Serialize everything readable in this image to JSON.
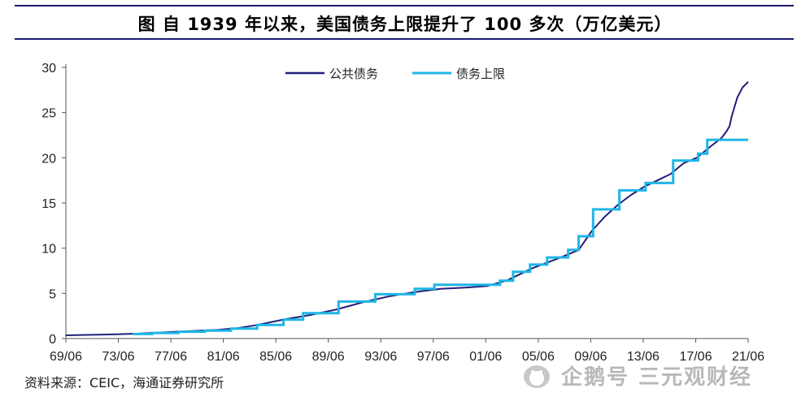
{
  "title": "图  自 1939 年以来，美国债务上限提升了 100 多次（万亿美元）",
  "source": "资料来源：CEIC，海通证券研究所",
  "watermark": "企鹅号 三元观财经",
  "colors": {
    "debt": "#1f1f7a",
    "limit": "#1fb6e6",
    "rule": "#1a1a6e",
    "axis": "#555555"
  },
  "chart_data": {
    "type": "line",
    "title": "自 1939 年以来，美国债务上限提升了 100 多次（万亿美元）",
    "xlabel": "",
    "ylabel": "",
    "xlim": [
      1969.42,
      2021.42
    ],
    "ylim": [
      0,
      30
    ],
    "yticks": [
      0,
      5,
      10,
      15,
      20,
      25,
      30
    ],
    "xticks": [
      {
        "x": 1969.42,
        "label": "69/06"
      },
      {
        "x": 1973.42,
        "label": "73/06"
      },
      {
        "x": 1977.42,
        "label": "77/06"
      },
      {
        "x": 1981.42,
        "label": "81/06"
      },
      {
        "x": 1985.42,
        "label": "85/06"
      },
      {
        "x": 1989.42,
        "label": "89/06"
      },
      {
        "x": 1993.42,
        "label": "93/06"
      },
      {
        "x": 1997.42,
        "label": "97/06"
      },
      {
        "x": 2001.42,
        "label": "01/06"
      },
      {
        "x": 2005.42,
        "label": "05/06"
      },
      {
        "x": 2009.42,
        "label": "09/06"
      },
      {
        "x": 2013.42,
        "label": "13/06"
      },
      {
        "x": 2017.42,
        "label": "17/06"
      },
      {
        "x": 2021.42,
        "label": "21/06"
      }
    ],
    "legend_position": "top-center",
    "grid": false,
    "series": [
      {
        "name": "公共债务",
        "kind": "line",
        "points": [
          [
            1969.42,
            0.36
          ],
          [
            1971.0,
            0.4
          ],
          [
            1973.0,
            0.46
          ],
          [
            1975.0,
            0.55
          ],
          [
            1977.0,
            0.7
          ],
          [
            1979.0,
            0.83
          ],
          [
            1981.0,
            0.97
          ],
          [
            1982.5,
            1.15
          ],
          [
            1984.0,
            1.5
          ],
          [
            1986.0,
            2.1
          ],
          [
            1988.0,
            2.6
          ],
          [
            1990.0,
            3.2
          ],
          [
            1992.0,
            4.0
          ],
          [
            1994.0,
            4.65
          ],
          [
            1996.0,
            5.15
          ],
          [
            1998.0,
            5.5
          ],
          [
            2000.0,
            5.65
          ],
          [
            2001.5,
            5.8
          ],
          [
            2003.0,
            6.4
          ],
          [
            2005.0,
            7.8
          ],
          [
            2007.0,
            8.9
          ],
          [
            2008.5,
            9.8
          ],
          [
            2009.5,
            11.9
          ],
          [
            2010.5,
            13.5
          ],
          [
            2011.5,
            14.8
          ],
          [
            2012.5,
            15.9
          ],
          [
            2013.5,
            16.8
          ],
          [
            2014.5,
            17.5
          ],
          [
            2015.5,
            18.2
          ],
          [
            2016.5,
            19.4
          ],
          [
            2017.5,
            20.0
          ],
          [
            2018.5,
            21.2
          ],
          [
            2019.4,
            22.2
          ],
          [
            2019.8,
            23.0
          ],
          [
            2020.0,
            23.5
          ],
          [
            2020.15,
            24.5
          ],
          [
            2020.35,
            25.5
          ],
          [
            2020.6,
            26.7
          ],
          [
            2021.0,
            27.8
          ],
          [
            2021.42,
            28.4
          ]
        ]
      },
      {
        "name": "债务上限",
        "kind": "step",
        "points": [
          [
            1974.5,
            0.5
          ],
          [
            1976.0,
            0.62
          ],
          [
            1978.0,
            0.75
          ],
          [
            1980.0,
            0.88
          ],
          [
            1982.0,
            1.1
          ],
          [
            1984.0,
            1.5
          ],
          [
            1986.0,
            2.08
          ],
          [
            1987.5,
            2.8
          ],
          [
            1990.2,
            4.1
          ],
          [
            1993.0,
            4.9
          ],
          [
            1996.0,
            5.5
          ],
          [
            1997.5,
            5.95
          ],
          [
            2002.5,
            6.4
          ],
          [
            2003.5,
            7.38
          ],
          [
            2004.8,
            8.18
          ],
          [
            2006.1,
            8.97
          ],
          [
            2007.7,
            9.82
          ],
          [
            2008.5,
            11.32
          ],
          [
            2009.6,
            14.29
          ],
          [
            2011.6,
            16.39
          ],
          [
            2013.6,
            17.21
          ],
          [
            2015.7,
            19.7
          ],
          [
            2017.6,
            20.46
          ],
          [
            2018.3,
            21.99
          ],
          [
            2021.42,
            21.99
          ]
        ]
      }
    ]
  }
}
